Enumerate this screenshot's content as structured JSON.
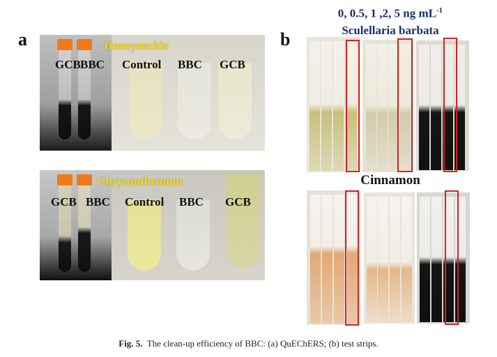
{
  "panel_a": {
    "letter": "a",
    "top": {
      "title": "Honeysuckle",
      "labels": [
        "GCB",
        "BBC",
        "Control",
        "BBC",
        "GCB"
      ]
    },
    "bottom": {
      "title": "Chrysanthemum",
      "labels": [
        "GCB",
        "BBC",
        "Control",
        "BBC",
        "GCB"
      ]
    }
  },
  "panel_b": {
    "letter": "b",
    "header_line1": "0, 0.5, 1 ,2, 5 ng mL",
    "header_sup": "-1",
    "header_line2": "Sculellaria barbata",
    "middle_label": "Cinnamon"
  },
  "caption": {
    "label": "Fig. 5.",
    "text": "The clean-up efficiency of BBC: (a) QuEChERS; (b) test strips."
  },
  "colors": {
    "highlight": "#d82020",
    "title_yellow": "#f5d810",
    "header_blue": "#1b2f6b",
    "cap_orange": "#f07a1a"
  }
}
